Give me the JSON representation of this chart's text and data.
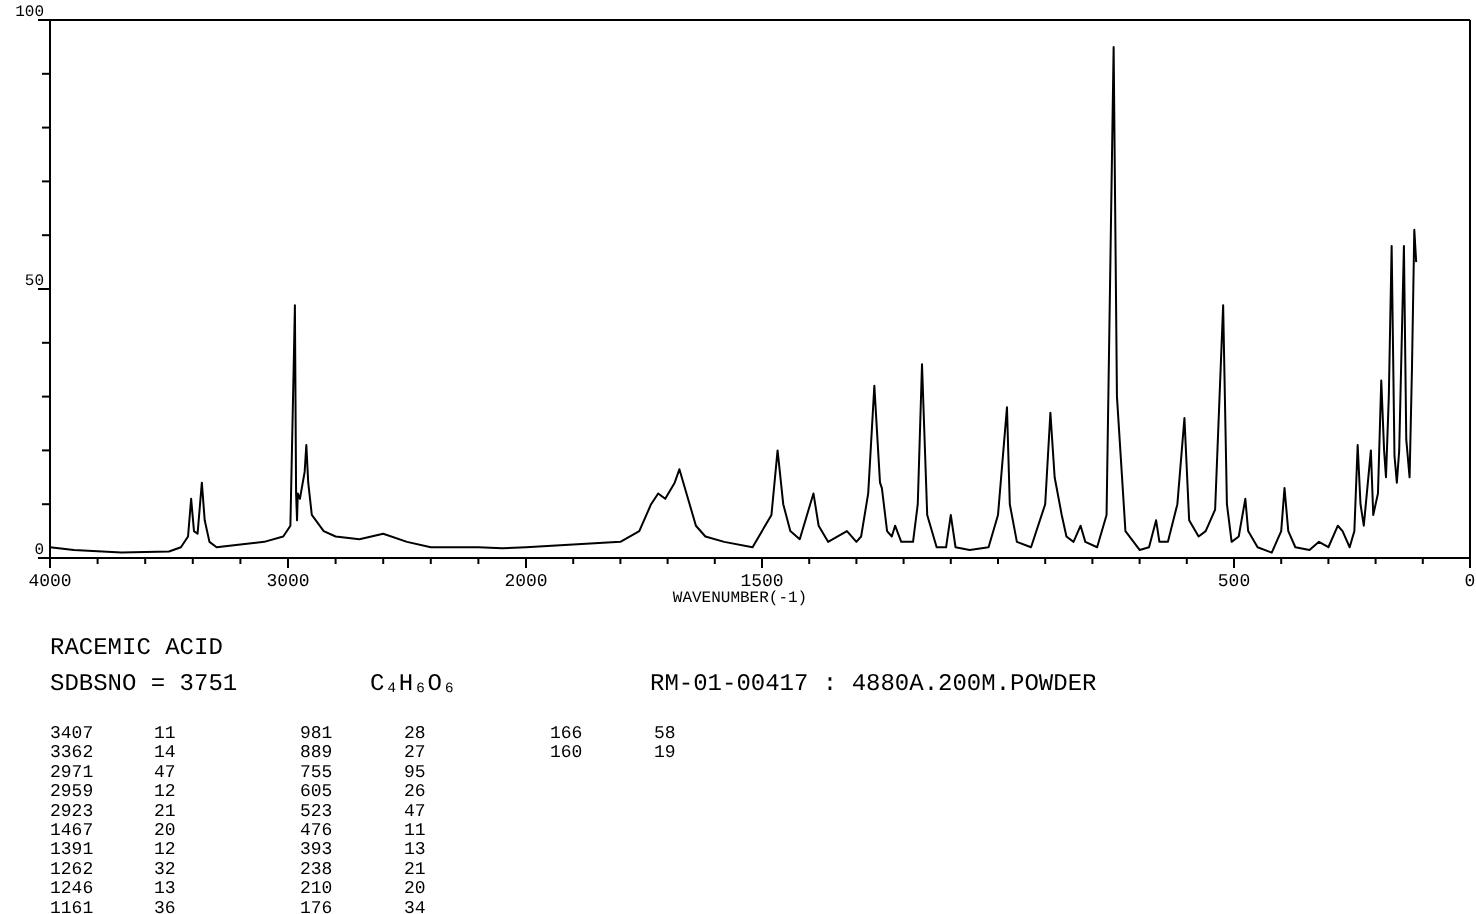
{
  "chart_data": [
    {
      "type": "line",
      "title": "RACEMIC ACID",
      "annotations": [
        "SDBSNO = 3751",
        "C₄H₆O₆",
        "RM-01-00417 : 4880A.200M.POWDER",
        "3407 11",
        "3362 14",
        "2971 47",
        "2959 12",
        "2923 21",
        "1467 20",
        "1391 12",
        "1262 32",
        "1246 13",
        "1161 36",
        "981 28",
        "889 27",
        "755 95",
        "605 26",
        "523 47",
        "476 11",
        "393 13",
        "238 21",
        "210 20",
        "176 34",
        "166 58",
        "160 19"
      ],
      "xlim": [
        4000,
        2000
      ],
      "xticks": [
        4000,
        {
          "value": 3800,
          "label": null
        },
        {
          "value": 3600,
          "label": null
        },
        {
          "value": 3400,
          "label": null
        },
        {
          "value": 3200,
          "label": null
        },
        3000,
        {
          "value": 2800,
          "label": null
        },
        {
          "value": 2600,
          "label": null
        },
        {
          "value": 2400,
          "label": null
        },
        {
          "value": 2200,
          "label": null
        }
      ],
      "ylim": [
        0,
        100
      ],
      "yticks": [
        0,
        {
          "value": 10,
          "label": null
        },
        {
          "value": 20,
          "label": null
        },
        {
          "value": 30,
          "label": null
        },
        {
          "value": 40,
          "label": null
        },
        50,
        {
          "value": 60,
          "label": null
        },
        {
          "value": 70,
          "label": null
        },
        {
          "value": 80,
          "label": null
        },
        {
          "value": 90,
          "label": null
        },
        100
      ],
      "marker": "none",
      "line_style": "solid",
      "series": [
        {
          "color": "#000000",
          "x": [
            4000,
            3900,
            3700,
            3500,
            3450,
            3420,
            3407,
            3395,
            3380,
            3362,
            3350,
            3330,
            3300,
            3200,
            3100,
            3020,
            2990,
            2975,
            2971,
            2966,
            2962,
            2959,
            2950,
            2930,
            2923,
            2915,
            2900,
            2850,
            2800,
            2700,
            2600,
            2500,
            2400,
            2200,
            2100,
            2000
          ],
          "values": [
            2,
            1.5,
            1,
            1.2,
            2,
            4,
            11,
            5,
            4.5,
            14,
            7,
            3,
            2,
            2.5,
            3,
            4,
            6,
            38,
            47,
            12,
            7,
            12,
            11,
            16,
            21,
            14,
            8,
            5,
            4,
            3.5,
            4.5,
            3,
            2,
            2,
            1.8,
            2
          ]
        }
      ]
    },
    {
      "type": "line",
      "xlabel": "WAVENUMBER(-1)",
      "tick_labels": "x",
      "xlim": [
        2000,
        0
      ],
      "xticks": [
        2000,
        {
          "value": 1900,
          "label": null
        },
        {
          "value": 1800,
          "label": null
        },
        {
          "value": 1700,
          "label": null
        },
        {
          "value": 1600,
          "label": null
        },
        1500,
        {
          "value": 1400,
          "label": null
        },
        {
          "value": 1300,
          "label": null
        },
        {
          "value": 1200,
          "label": null
        },
        {
          "value": 1100,
          "label": null
        },
        {
          "value": 1000,
          "label": null
        },
        {
          "value": 900,
          "label": null
        },
        {
          "value": 800,
          "label": null
        },
        {
          "value": 700,
          "label": null
        },
        {
          "value": 600,
          "label": null
        },
        500,
        {
          "value": 400,
          "label": null
        },
        {
          "value": 300,
          "label": null
        },
        {
          "value": 200,
          "label": null
        },
        {
          "value": 100,
          "label": null
        },
        0
      ],
      "ylim": [
        0,
        100
      ],
      "marker": "none",
      "line_style": "solid",
      "series": [
        {
          "color": "#000000",
          "x": [
            2000,
            1900,
            1800,
            1760,
            1735,
            1720,
            1705,
            1685,
            1675,
            1660,
            1640,
            1620,
            1580,
            1520,
            1480,
            1467,
            1455,
            1440,
            1420,
            1391,
            1380,
            1360,
            1320,
            1300,
            1290,
            1275,
            1262,
            1250,
            1246,
            1235,
            1225,
            1218,
            1205,
            1180,
            1170,
            1161,
            1150,
            1130,
            1110,
            1100,
            1090,
            1060,
            1020,
            1000,
            981,
            975,
            960,
            930,
            900,
            889,
            880,
            865,
            855,
            840,
            825,
            815,
            790,
            770,
            755,
            748,
            730,
            700,
            680,
            665,
            658,
            640,
            620,
            605,
            595,
            575,
            560,
            540,
            523,
            515,
            505,
            490,
            476,
            470,
            450,
            420,
            400,
            393,
            385,
            370,
            340,
            320,
            300,
            280,
            270,
            255,
            245,
            238,
            232,
            225,
            210,
            205,
            195,
            188,
            182,
            178,
            172,
            166,
            160,
            155,
            150,
            140,
            135,
            128,
            123,
            118,
            114
          ],
          "values": [
            2,
            2.5,
            3,
            5,
            10,
            12,
            11,
            14,
            16.5,
            12,
            6,
            4,
            3,
            2,
            8,
            20,
            10,
            5,
            3.5,
            12,
            6,
            3,
            5,
            3,
            4,
            12,
            32,
            14,
            13,
            5,
            4,
            6,
            3,
            3,
            10,
            36,
            8,
            2,
            2,
            8,
            2,
            1.5,
            2,
            8,
            28,
            10,
            3,
            2,
            10,
            27,
            15,
            8,
            4,
            3,
            6,
            3,
            2,
            8,
            95,
            30,
            5,
            1.5,
            2,
            7,
            3,
            3,
            10,
            26,
            7,
            4,
            5,
            9,
            47,
            10,
            3,
            4,
            11,
            5,
            2,
            1,
            5,
            13,
            5,
            2,
            1.5,
            3,
            2,
            6,
            5,
            2,
            5,
            21,
            10,
            6,
            20,
            8,
            12,
            33,
            20,
            15,
            30,
            58,
            19,
            14,
            20,
            58,
            22,
            15,
            35,
            61,
            55
          ]
        }
      ]
    }
  ]
}
